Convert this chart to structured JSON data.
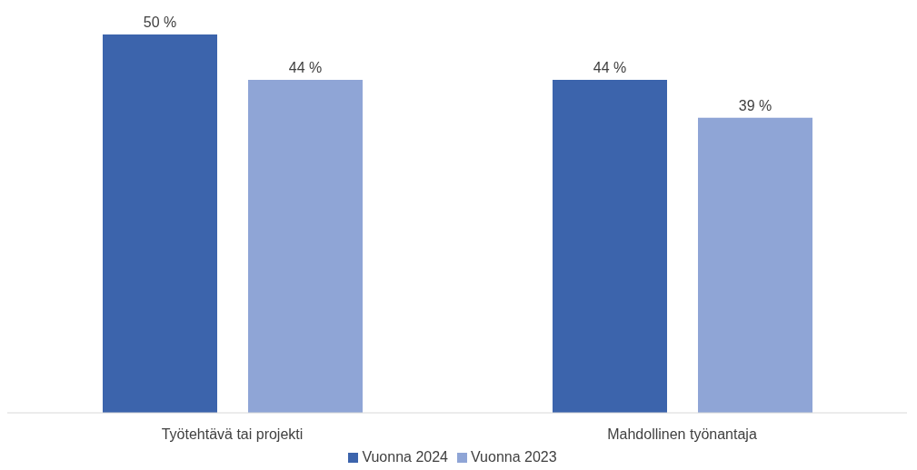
{
  "chart_data": {
    "type": "bar",
    "categories": [
      "Työtehtävä tai projekti",
      "Mahdollinen työnantaja"
    ],
    "series": [
      {
        "name": "Vuonna 2024",
        "color": "#3c64ac",
        "values": [
          50,
          44
        ],
        "value_labels": [
          "50 %",
          "44 %"
        ]
      },
      {
        "name": "Vuonna 2023",
        "color": "#8fa5d6",
        "values": [
          44,
          39
        ],
        "value_labels": [
          "44 %",
          "39 %"
        ]
      }
    ],
    "legend": "bottom"
  }
}
